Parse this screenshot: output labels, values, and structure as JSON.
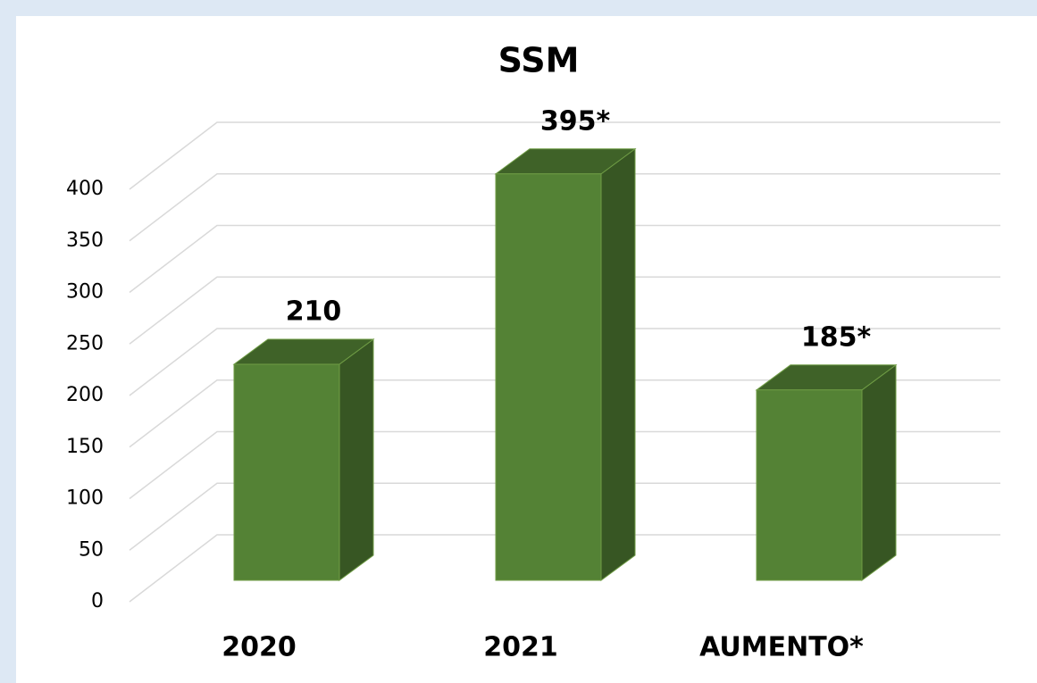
{
  "chart_data": {
    "type": "bar3d",
    "title": "SSM",
    "categories": [
      "2020",
      "2021",
      "AUMENTO*"
    ],
    "values": [
      210,
      395,
      185
    ],
    "value_labels": [
      "210",
      "395*",
      "185*"
    ],
    "color": "#548235",
    "ylim": [
      0,
      400
    ],
    "yticks": [
      0,
      50,
      100,
      150,
      200,
      250,
      300,
      350,
      400
    ],
    "grid": true
  }
}
